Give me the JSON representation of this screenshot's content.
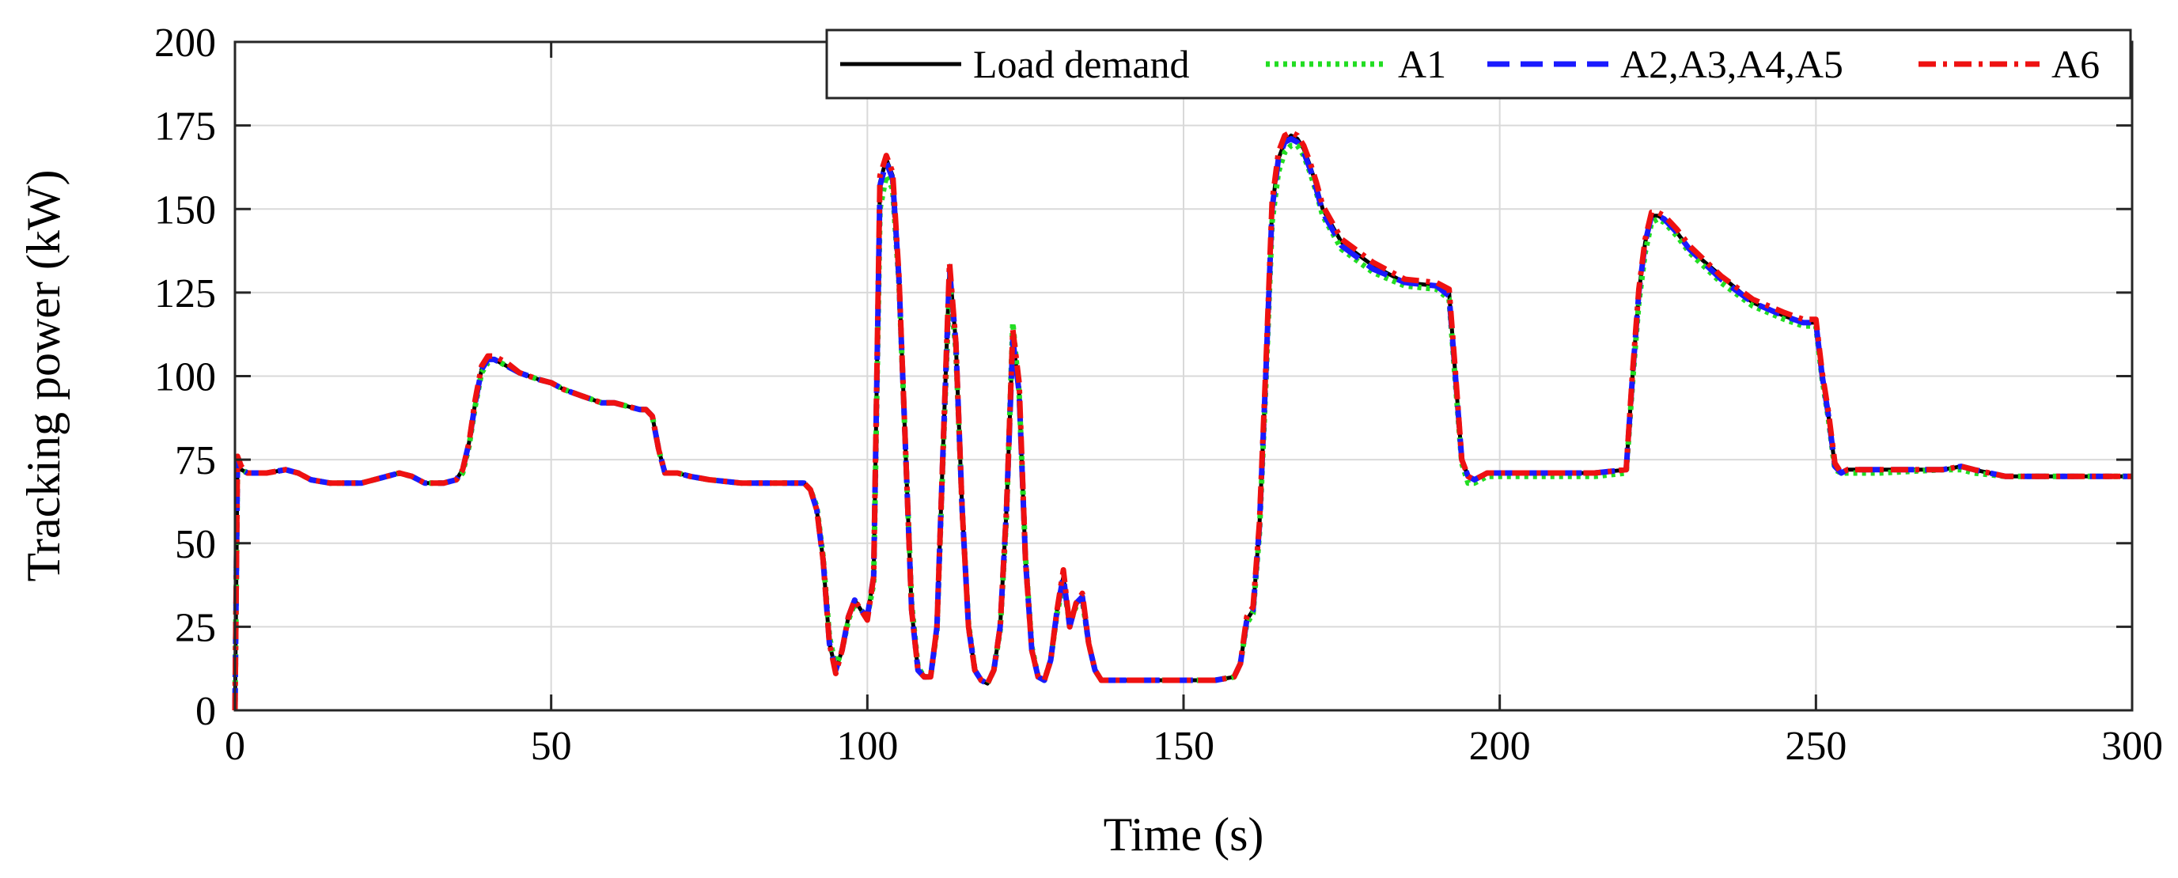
{
  "chart_data": {
    "type": "line",
    "title": "",
    "xlabel": "Time (s)",
    "ylabel": "Tracking power (kW)",
    "xlim": [
      0,
      300
    ],
    "ylim": [
      0,
      200
    ],
    "xticks": [
      "0",
      "50",
      "100",
      "150",
      "200",
      "250",
      "300"
    ],
    "yticks": [
      "0",
      "25",
      "50",
      "75",
      "100",
      "125",
      "150",
      "175",
      "200"
    ],
    "grid": true,
    "legend_position": "top-right",
    "x": [
      0,
      0.4,
      1,
      2,
      5,
      8,
      10,
      12,
      15,
      18,
      20,
      22,
      24,
      26,
      28,
      30,
      33,
      35,
      36,
      37,
      38,
      39,
      40,
      41,
      42,
      43,
      45,
      48,
      50,
      52,
      55,
      58,
      60,
      62,
      64,
      65,
      66,
      67,
      68,
      70,
      72,
      75,
      80,
      85,
      88,
      90,
      91,
      92,
      93,
      94,
      95,
      96,
      97,
      98,
      99,
      100,
      101,
      102,
      103,
      104,
      105,
      106,
      107,
      108,
      109,
      110,
      111,
      112,
      113,
      114,
      115,
      116,
      117,
      118,
      119,
      120,
      121,
      122,
      123,
      124,
      125,
      126,
      127,
      128,
      129,
      130,
      131,
      132,
      133,
      134,
      135,
      136,
      137,
      138,
      140,
      145,
      150,
      155,
      158,
      159,
      160,
      161,
      162,
      163,
      164,
      165,
      166,
      167,
      168,
      169,
      170,
      171,
      172,
      175,
      180,
      185,
      190,
      192,
      193,
      194,
      195,
      196,
      197,
      198,
      200,
      205,
      210,
      215,
      220,
      221,
      222,
      223,
      224,
      225,
      226,
      227,
      228,
      230,
      235,
      240,
      245,
      248,
      250,
      251,
      252,
      253,
      254,
      255,
      260,
      270,
      273,
      275,
      280,
      290,
      300
    ],
    "series": [
      {
        "name": "Load demand",
        "color": "#000000",
        "style": "solid",
        "values": [
          0,
          74,
          72,
          71,
          71,
          72,
          71,
          69,
          68,
          68,
          68,
          69,
          70,
          71,
          70,
          68,
          68,
          69,
          72,
          80,
          92,
          102,
          105,
          105,
          104,
          103,
          101,
          99,
          98,
          96,
          94,
          92,
          92,
          91,
          90,
          90,
          88,
          78,
          71,
          71,
          70,
          69,
          68,
          68,
          68,
          68,
          66,
          60,
          45,
          20,
          12,
          18,
          28,
          33,
          30,
          28,
          40,
          158,
          165,
          160,
          130,
          80,
          30,
          12,
          10,
          10,
          25,
          80,
          133,
          110,
          60,
          25,
          12,
          9,
          8,
          12,
          25,
          60,
          112,
          95,
          45,
          18,
          10,
          9,
          15,
          30,
          40,
          25,
          32,
          34,
          20,
          12,
          9,
          9,
          9,
          9,
          9,
          9,
          10,
          14,
          27,
          30,
          55,
          100,
          150,
          165,
          170,
          172,
          171,
          168,
          163,
          157,
          150,
          140,
          133,
          128,
          127,
          125,
          100,
          75,
          70,
          69,
          70,
          71,
          71,
          71,
          71,
          71,
          72,
          100,
          125,
          140,
          148,
          148,
          147,
          145,
          143,
          138,
          130,
          122,
          118,
          116,
          116,
          100,
          88,
          73,
          71,
          72,
          72,
          72,
          73,
          72,
          70,
          70,
          70
        ]
      },
      {
        "name": "A1",
        "color": "#22dd22",
        "style": "dotted",
        "values": [
          0,
          73,
          72,
          71,
          71,
          72,
          71,
          69,
          68,
          68,
          68,
          69,
          70,
          71,
          70,
          68,
          68,
          69,
          71,
          79,
          91,
          101,
          104,
          105,
          104,
          103,
          101,
          99,
          98,
          96,
          94,
          92,
          92,
          91,
          90,
          90,
          88,
          78,
          71,
          71,
          70,
          69,
          68,
          68,
          68,
          68,
          66,
          61,
          46,
          22,
          13,
          18,
          27,
          32,
          30,
          28,
          38,
          150,
          160,
          156,
          128,
          80,
          32,
          13,
          10,
          10,
          24,
          78,
          128,
          108,
          60,
          26,
          12,
          9,
          8,
          12,
          24,
          58,
          116,
          95,
          46,
          19,
          10,
          9,
          15,
          29,
          38,
          26,
          31,
          33,
          20,
          12,
          9,
          9,
          9,
          9,
          9,
          9,
          10,
          14,
          26,
          29,
          53,
          97,
          146,
          161,
          167,
          169,
          169,
          166,
          161,
          155,
          148,
          138,
          131,
          127,
          126,
          123,
          98,
          74,
          68,
          68,
          69,
          70,
          70,
          70,
          70,
          70,
          71,
          98,
          122,
          137,
          146,
          147,
          146,
          144,
          142,
          137,
          128,
          121,
          117,
          115,
          115,
          99,
          87,
          72,
          71,
          71,
          71,
          72,
          72,
          71,
          70,
          70,
          70
        ]
      },
      {
        "name": "A2,A3,A4,A5",
        "color": "#1a1aff",
        "style": "dashed",
        "values": [
          0,
          75,
          72,
          71,
          71,
          72,
          71,
          69,
          68,
          68,
          68,
          69,
          70,
          71,
          70,
          68,
          68,
          69,
          72,
          80,
          92,
          102,
          105,
          105,
          104,
          103,
          101,
          99,
          98,
          96,
          94,
          92,
          92,
          91,
          90,
          90,
          88,
          78,
          71,
          71,
          70,
          69,
          68,
          68,
          68,
          68,
          66,
          60,
          45,
          20,
          12,
          18,
          28,
          33,
          30,
          28,
          40,
          157,
          164,
          159,
          129,
          80,
          30,
          12,
          10,
          10,
          25,
          80,
          132,
          110,
          60,
          25,
          12,
          9,
          8,
          12,
          25,
          60,
          111,
          95,
          45,
          18,
          10,
          9,
          15,
          30,
          40,
          25,
          32,
          34,
          20,
          12,
          9,
          9,
          9,
          9,
          9,
          9,
          10,
          14,
          27,
          30,
          55,
          100,
          150,
          165,
          170,
          171,
          170,
          167,
          162,
          156,
          149,
          139,
          132,
          128,
          127,
          124,
          100,
          75,
          70,
          69,
          70,
          71,
          71,
          71,
          71,
          71,
          72,
          100,
          125,
          140,
          148,
          148,
          147,
          145,
          143,
          138,
          129,
          122,
          118,
          116,
          116,
          100,
          88,
          73,
          71,
          72,
          72,
          72,
          73,
          72,
          70,
          70,
          70
        ]
      },
      {
        "name": "A6",
        "color": "#ee1111",
        "style": "dashdot",
        "values": [
          0,
          76,
          73,
          71,
          71,
          72,
          71,
          69,
          68,
          68,
          68,
          69,
          70,
          71,
          70,
          68,
          68,
          69,
          72,
          80,
          93,
          103,
          106,
          106,
          105,
          104,
          101,
          99,
          98,
          96,
          94,
          92,
          92,
          91,
          90,
          90,
          88,
          78,
          71,
          71,
          70,
          69,
          68,
          68,
          68,
          68,
          66,
          60,
          45,
          20,
          11,
          18,
          28,
          33,
          30,
          27,
          40,
          160,
          166,
          161,
          130,
          80,
          30,
          12,
          10,
          10,
          25,
          80,
          134,
          110,
          60,
          25,
          12,
          9,
          8,
          12,
          25,
          60,
          114,
          98,
          45,
          18,
          10,
          9,
          15,
          30,
          42,
          25,
          32,
          35,
          20,
          12,
          9,
          9,
          9,
          9,
          9,
          9,
          10,
          14,
          28,
          31,
          56,
          102,
          152,
          167,
          172,
          173,
          172,
          169,
          164,
          158,
          151,
          141,
          134,
          129,
          128,
          126,
          101,
          75,
          70,
          69,
          70,
          71,
          71,
          71,
          71,
          71,
          72,
          101,
          126,
          141,
          149,
          149,
          148,
          146,
          144,
          139,
          130,
          123,
          119,
          117,
          117,
          101,
          89,
          74,
          71,
          72,
          72,
          72,
          73,
          72,
          70,
          70,
          70
        ]
      }
    ]
  }
}
